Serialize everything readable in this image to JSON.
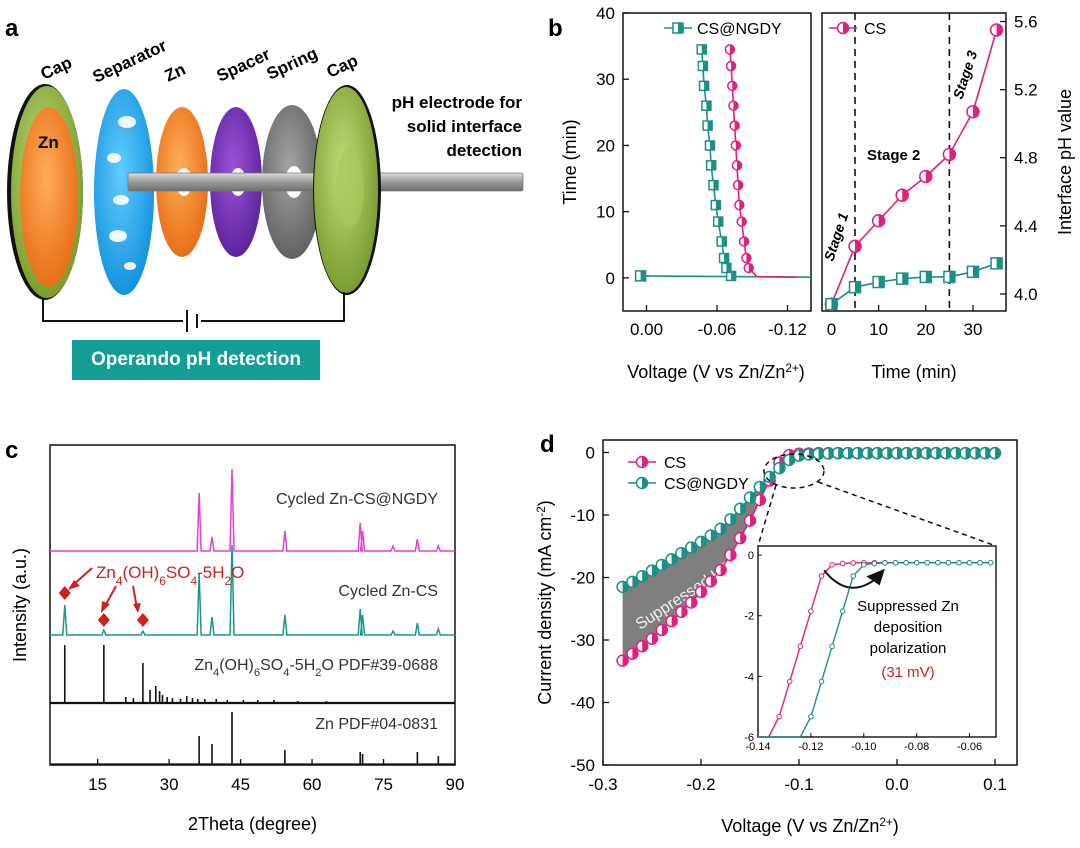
{
  "panel_labels": {
    "a": "a",
    "b": "b",
    "c": "c",
    "d": "d"
  },
  "colors": {
    "cs": "#e0207f",
    "ngdy": "#1a9086",
    "cycled_ngdy": "#e43fd6",
    "cycled_cs": "#16988e",
    "gray_fill": "#7f7f7f"
  },
  "panel_a": {
    "labels": [
      "Cap",
      "Separator",
      "Zn",
      "Spacer",
      "Spring",
      "Cap"
    ],
    "zn_label": "Zn",
    "electrode_label": [
      "pH electrode for",
      "solid interface",
      "detection"
    ],
    "operando_label": "Operando pH detection"
  },
  "chart_data": [
    {
      "id": "b-left",
      "type": "line",
      "xlabel": "Voltage (V vs Zn/Zn",
      "xlabel_sup": "2+",
      "xlabel_end": ")",
      "ylabel": "Time (min)",
      "xlim": [
        0.02,
        -0.14
      ],
      "ylim": [
        -5,
        40
      ],
      "xticks": [
        {
          "v": 0.0,
          "label": "0.00"
        },
        {
          "v": -0.06,
          "label": "-0.06"
        },
        {
          "v": -0.12,
          "label": "-0.12"
        }
      ],
      "yticks": [
        0,
        10,
        20,
        30,
        40
      ],
      "series": [
        {
          "name": "CS@NGDY",
          "color": "#1a9086",
          "points": [
            [
              0.005,
              0.3
            ],
            [
              -0.072,
              0.3
            ],
            [
              -0.068,
              1.5
            ],
            [
              -0.066,
              3
            ],
            [
              -0.064,
              5.5
            ],
            [
              -0.061,
              8.5
            ],
            [
              -0.059,
              11
            ],
            [
              -0.057,
              14
            ],
            [
              -0.055,
              17
            ],
            [
              -0.054,
              20
            ],
            [
              -0.052,
              23
            ],
            [
              -0.051,
              26
            ],
            [
              -0.049,
              29
            ],
            [
              -0.048,
              32
            ],
            [
              -0.047,
              34.5
            ]
          ],
          "line_end": [
            -0.14,
            0.1
          ]
        },
        {
          "name": "CS",
          "color": "#e0207f",
          "points": [
            [
              -0.087,
              1.5
            ],
            [
              -0.085,
              3
            ],
            [
              -0.083,
              5.5
            ],
            [
              -0.081,
              8.5
            ],
            [
              -0.079,
              11
            ],
            [
              -0.078,
              14
            ],
            [
              -0.077,
              17
            ],
            [
              -0.076,
              20
            ],
            [
              -0.075,
              23
            ],
            [
              -0.074,
              26
            ],
            [
              -0.073,
              29
            ],
            [
              -0.072,
              32
            ],
            [
              -0.071,
              34.5
            ]
          ],
          "line_end": [
            -0.128,
            0.1
          ]
        }
      ]
    },
    {
      "id": "b-right",
      "type": "line",
      "xlabel": "Time (min)",
      "ylabel": "Interface pH value",
      "xlim": [
        -2,
        37
      ],
      "ylim": [
        3.9,
        5.65
      ],
      "xticks": [
        0,
        10,
        20,
        30
      ],
      "yticks": [
        {
          "v": 4.0,
          "label": "4.0"
        },
        {
          "v": 4.4,
          "label": "4.4"
        },
        {
          "v": 4.8,
          "label": "4.8"
        },
        {
          "v": 5.2,
          "label": "5.2"
        },
        {
          "v": 5.6,
          "label": "5.6"
        }
      ],
      "vlines": [
        5,
        25
      ],
      "stage_labels": [
        "Stage 1",
        "Stage 2",
        "Stage 3"
      ],
      "series": [
        {
          "name": "CS",
          "color": "#e0207f",
          "x": [
            0,
            5,
            10,
            15,
            20,
            25,
            30,
            35
          ],
          "y": [
            3.94,
            4.28,
            4.43,
            4.58,
            4.69,
            4.82,
            5.07,
            5.55
          ]
        },
        {
          "name": "CS@NGDY",
          "color": "#1a9086",
          "x": [
            0,
            5,
            10,
            15,
            20,
            25,
            30,
            35
          ],
          "y": [
            3.94,
            4.04,
            4.07,
            4.09,
            4.1,
            4.1,
            4.13,
            4.18
          ]
        }
      ]
    },
    {
      "id": "c",
      "type": "line",
      "xlabel": "2Theta (degree)",
      "ylabel": "Intensity (a.u.)",
      "xlim": [
        5,
        90
      ],
      "xticks": [
        15,
        30,
        45,
        60,
        75,
        90
      ],
      "traces": [
        {
          "name": "Cycled Zn-CS@NGDY",
          "color": "#e43fd6",
          "label": "Cycled Zn-CS@NGDY",
          "peaks": [
            [
              36.3,
              58
            ],
            [
              39.0,
              14
            ],
            [
              43.2,
              82
            ],
            [
              54.3,
              20
            ],
            [
              70.1,
              28
            ],
            [
              70.6,
              20
            ],
            [
              77.0,
              5
            ],
            [
              82.1,
              12
            ],
            [
              86.5,
              5
            ]
          ]
        },
        {
          "name": "Cycled Zn-CS",
          "color": "#16988e",
          "label": "Cycled Zn-CS",
          "peaks": [
            [
              8.1,
              30
            ],
            [
              16.3,
              5
            ],
            [
              24.5,
              4
            ],
            [
              36.3,
              62
            ],
            [
              39.0,
              18
            ],
            [
              43.2,
              90
            ],
            [
              54.3,
              20
            ],
            [
              70.1,
              26
            ],
            [
              70.6,
              20
            ],
            [
              77.0,
              4
            ],
            [
              82.1,
              12
            ],
            [
              86.5,
              6
            ]
          ]
        },
        {
          "name": "Zn4(OH)6SO4-5H2O PDF#39-0688",
          "color": "#111",
          "label_parts": [
            "Zn",
            "4",
            "(OH)",
            "6",
            "SO",
            "4",
            "-5H",
            "2",
            "O PDF#39-0688"
          ],
          "sticks": [
            [
              8.1,
              58
            ],
            [
              16.3,
              58
            ],
            [
              20.9,
              6
            ],
            [
              22.5,
              5
            ],
            [
              24.5,
              40
            ],
            [
              26.0,
              13
            ],
            [
              27.2,
              17
            ],
            [
              28.0,
              12
            ],
            [
              28.6,
              8
            ],
            [
              29.6,
              6
            ],
            [
              30.7,
              5
            ],
            [
              32.4,
              4
            ],
            [
              33.7,
              7
            ],
            [
              34.9,
              5
            ],
            [
              36.0,
              4
            ],
            [
              37.5,
              4
            ],
            [
              39.9,
              4
            ],
            [
              42.2,
              3
            ],
            [
              45.6,
              3
            ],
            [
              48.6,
              3
            ],
            [
              52.0,
              3
            ],
            [
              57.0,
              2
            ],
            [
              63.0,
              2
            ]
          ]
        },
        {
          "name": "Zn PDF#04-0831",
          "color": "#111",
          "label": "Zn PDF#04-0831",
          "sticks": [
            [
              36.3,
              28
            ],
            [
              39.0,
              20
            ],
            [
              43.2,
              52
            ],
            [
              54.3,
              14
            ],
            [
              70.1,
              12
            ],
            [
              70.6,
              10
            ],
            [
              82.1,
              12
            ],
            [
              86.5,
              8
            ]
          ]
        }
      ],
      "annotation_parts": [
        "Zn",
        "4",
        "(OH)",
        "6",
        "SO",
        "4",
        "-5H",
        "2",
        "O"
      ]
    },
    {
      "id": "d",
      "type": "line",
      "xlabel": "Voltage (V vs Zn/Zn",
      "xlabel_sup": "2+",
      "xlabel_end": ")",
      "ylabel": "Current density (mA cm",
      "ylabel_sup": "-2",
      "ylabel_end": ")",
      "xlim": [
        -0.3,
        0.1
      ],
      "ylim": [
        -50,
        2
      ],
      "xticks": [
        {
          "v": -0.3,
          "label": "-0.3"
        },
        {
          "v": -0.2,
          "label": "-0.2"
        },
        {
          "v": -0.1,
          "label": "-0.1"
        },
        {
          "v": 0.0,
          "label": "0.0"
        },
        {
          "v": 0.1,
          "label": "0.1"
        }
      ],
      "yticks": [
        0,
        -10,
        -20,
        -30,
        -40,
        -50
      ],
      "series": [
        {
          "name": "CS",
          "color": "#e0207f",
          "x": [
            -0.28,
            -0.27,
            -0.26,
            -0.25,
            -0.24,
            -0.23,
            -0.22,
            -0.21,
            -0.2,
            -0.19,
            -0.18,
            -0.17,
            -0.16,
            -0.15,
            -0.14,
            -0.13,
            -0.12,
            -0.11,
            -0.1,
            -0.09,
            -0.08,
            -0.07,
            -0.06,
            -0.05,
            -0.04,
            -0.03,
            -0.02,
            -0.01,
            0.0,
            0.01,
            0.02,
            0.03,
            0.04,
            0.05,
            0.06,
            0.07,
            0.08,
            0.09,
            0.1
          ],
          "y": [
            -33.3,
            -32.2,
            -31.0,
            -29.8,
            -28.4,
            -27.0,
            -25.5,
            -24.0,
            -22.3,
            -20.6,
            -18.8,
            -16.4,
            -13.7,
            -10.9,
            -7.6,
            -4.5,
            -1.6,
            -0.4,
            -0.2,
            -0.15,
            -0.1,
            -0.1,
            -0.1,
            -0.1,
            -0.1,
            -0.1,
            -0.1,
            -0.1,
            -0.1,
            -0.1,
            -0.1,
            -0.1,
            -0.1,
            -0.1,
            -0.1,
            -0.1,
            -0.1,
            -0.1,
            -0.1
          ]
        },
        {
          "name": "CS@NGDY",
          "color": "#1a9086",
          "x": [
            -0.28,
            -0.27,
            -0.26,
            -0.25,
            -0.24,
            -0.23,
            -0.22,
            -0.21,
            -0.2,
            -0.19,
            -0.18,
            -0.17,
            -0.16,
            -0.15,
            -0.14,
            -0.13,
            -0.12,
            -0.11,
            -0.1,
            -0.09,
            -0.08,
            -0.07,
            -0.06,
            -0.05,
            -0.04,
            -0.03,
            -0.02,
            -0.01,
            0.0,
            0.01,
            0.02,
            0.03,
            0.04,
            0.05,
            0.06,
            0.07,
            0.08,
            0.09,
            0.1
          ],
          "y": [
            -21.5,
            -20.7,
            -19.8,
            -18.9,
            -18.0,
            -17.1,
            -16.1,
            -15.2,
            -14.3,
            -13.3,
            -12.2,
            -10.7,
            -9.0,
            -7.2,
            -5.5,
            -3.9,
            -2.5,
            -1.2,
            -0.5,
            -0.3,
            -0.2,
            -0.15,
            -0.1,
            -0.1,
            -0.1,
            -0.1,
            -0.1,
            -0.1,
            -0.1,
            -0.1,
            -0.1,
            -0.1,
            -0.1,
            -0.1,
            -0.1,
            -0.1,
            -0.1,
            -0.1,
            -0.1
          ]
        }
      ],
      "fill_label": "Suppressed HER",
      "inset": {
        "xlim": [
          -0.14,
          -0.05
        ],
        "ylim": [
          -6,
          0.3
        ],
        "xticks": [
          {
            "v": -0.14,
            "label": "-0.14"
          },
          {
            "v": -0.12,
            "label": "-0.12"
          },
          {
            "v": -0.1,
            "label": "-0.10"
          },
          {
            "v": -0.08,
            "label": "-0.08"
          },
          {
            "v": -0.06,
            "label": "-0.06"
          }
        ],
        "yticks": [
          {
            "v": 0,
            "label": "0"
          },
          {
            "v": -2,
            "label": "-2"
          },
          {
            "v": -4,
            "label": "-4"
          },
          {
            "v": -6,
            "label": "-6"
          }
        ],
        "annotation": [
          "Suppressed Zn",
          "deposition",
          "polarization"
        ],
        "annotation_value": "(31 mV)"
      }
    }
  ]
}
